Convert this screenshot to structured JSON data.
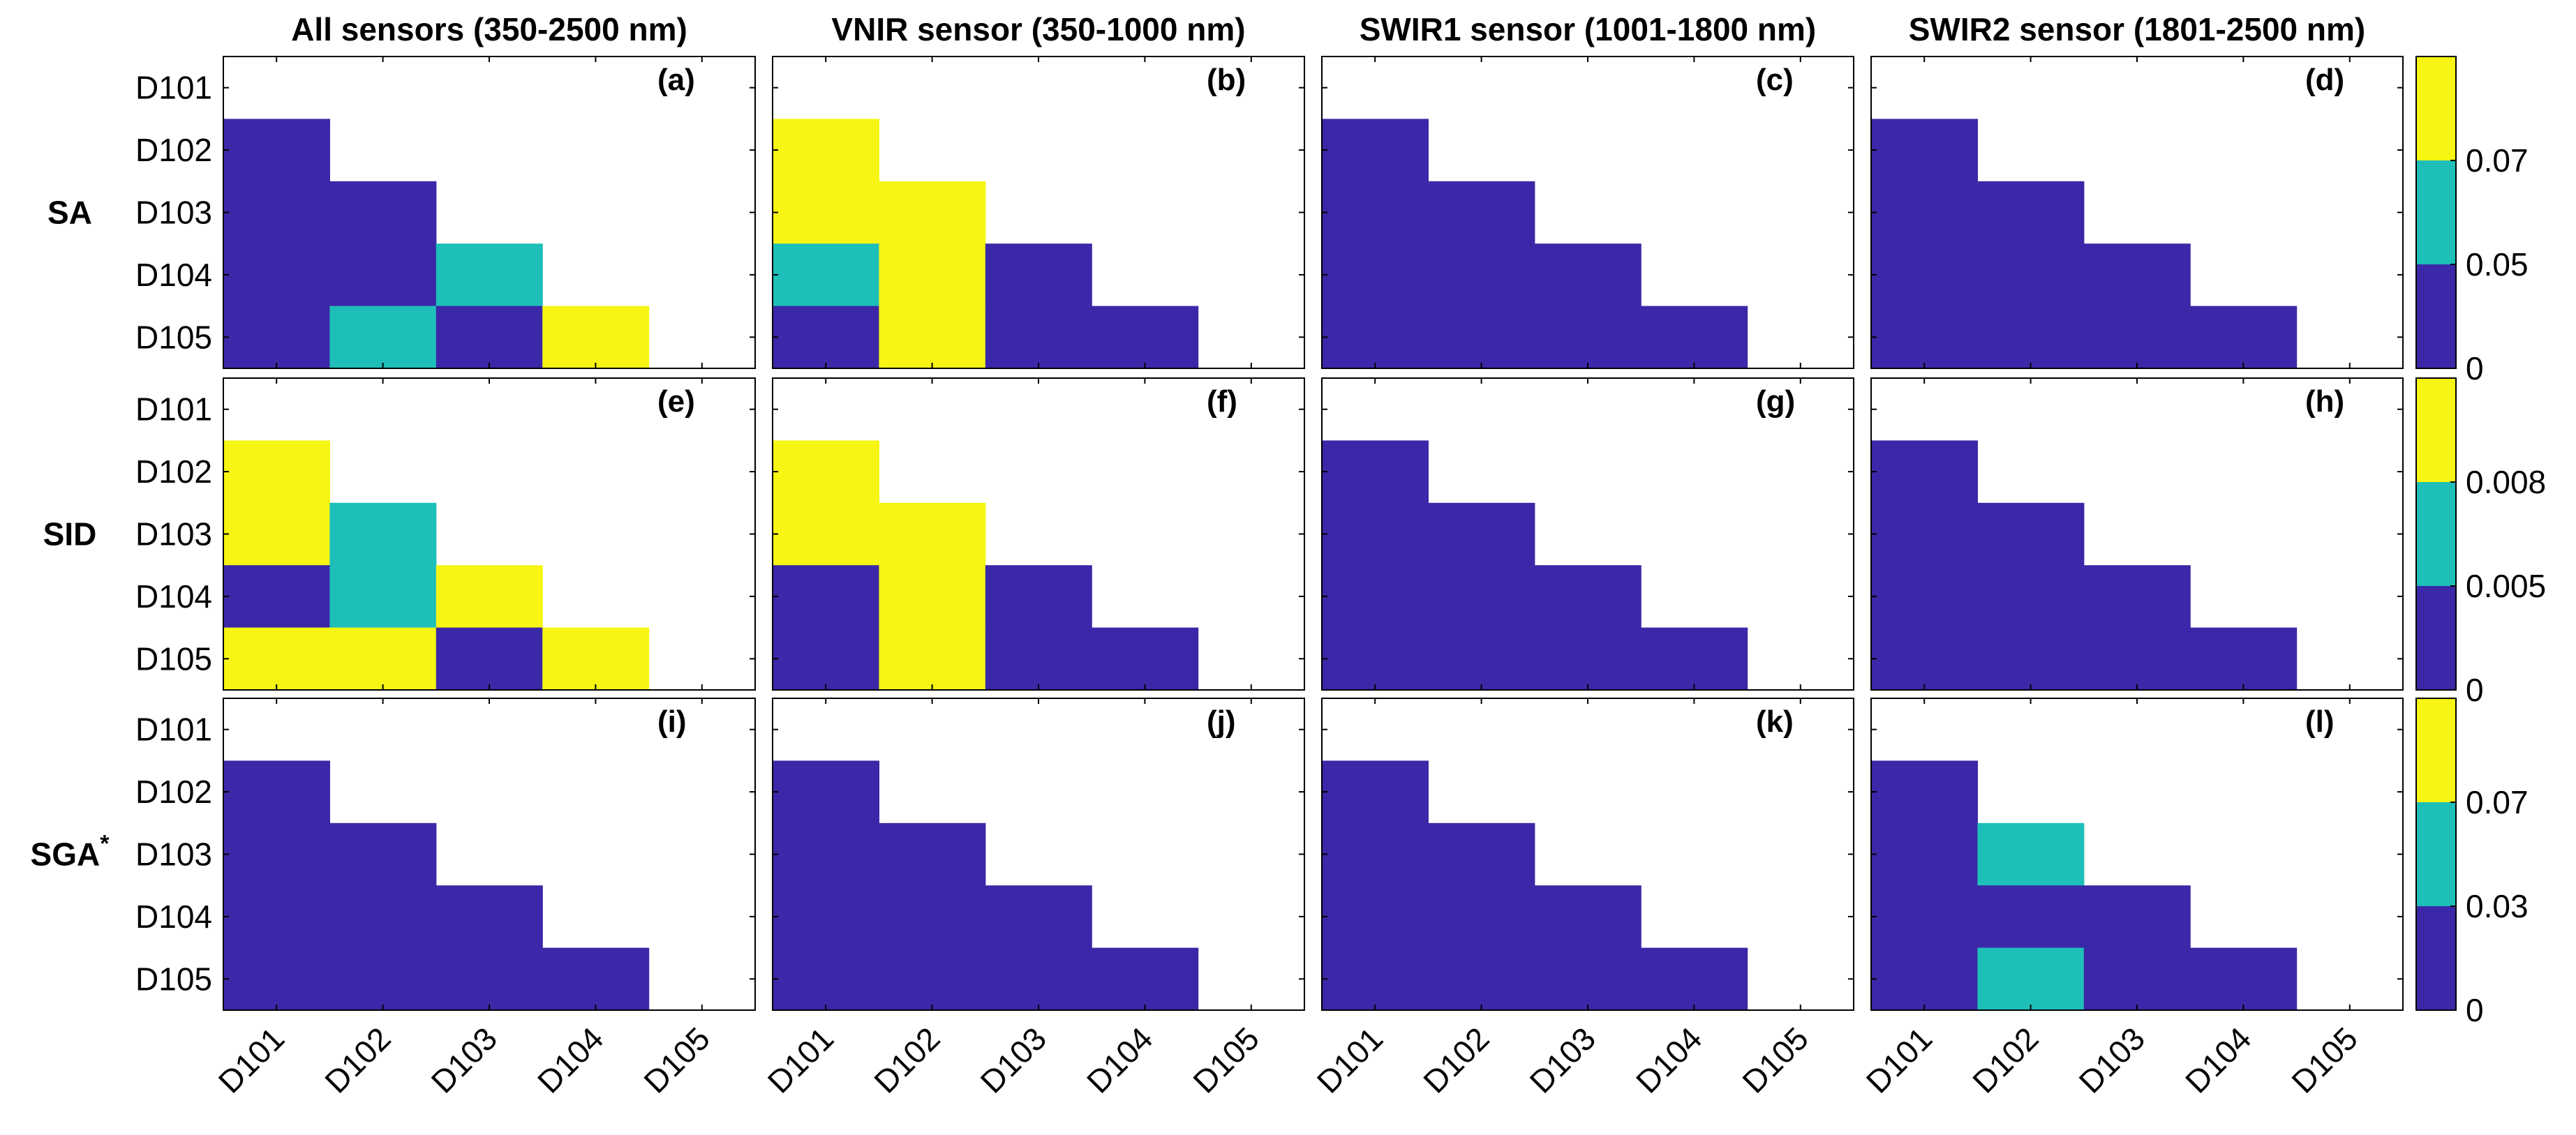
{
  "colors": {
    "low": "#3b28a8",
    "mid": "#1ebfb9",
    "high": "#f6f513",
    "none": "#ffffff",
    "axis": "#000000"
  },
  "figure": {
    "column_titles": [
      "All sensors (350-2500 nm)",
      "VNIR sensor (350-1000 nm)",
      "SWIR1 sensor (1001-1800 nm)",
      "SWIR2 sensor (1801-2500 nm)"
    ],
    "row_labels": [
      "SA",
      "SID",
      "SGA"
    ],
    "row_label_superscripts": [
      "",
      "",
      "*"
    ],
    "colorbars": [
      {
        "row": "SA",
        "ticks": [
          "0",
          "0.05",
          "0.07"
        ]
      },
      {
        "row": "SID",
        "ticks": [
          "0",
          "0.005",
          "0.008"
        ]
      },
      {
        "row": "SGA",
        "ticks": [
          "0",
          "0.03",
          "0.07"
        ]
      }
    ]
  },
  "chart_data": {
    "type": "heatmap",
    "rows": [
      "D101",
      "D102",
      "D103",
      "D104",
      "D105"
    ],
    "columns": [
      "D101",
      "D102",
      "D103",
      "D104",
      "D105"
    ],
    "value_legend": {
      "0": "lowest class (below first threshold)",
      "1": "middle class",
      "2": "highest class",
      "null": "not compared"
    },
    "panels": [
      {
        "label": "(a)",
        "metric": "SA",
        "sensor": "All sensors (350-2500 nm)",
        "grid": [
          [
            null,
            null,
            null,
            null,
            null
          ],
          [
            0,
            null,
            null,
            null,
            null
          ],
          [
            0,
            0,
            null,
            null,
            null
          ],
          [
            0,
            0,
            1,
            null,
            null
          ],
          [
            0,
            1,
            0,
            2,
            null
          ]
        ]
      },
      {
        "label": "(b)",
        "metric": "SA",
        "sensor": "VNIR sensor (350-1000 nm)",
        "grid": [
          [
            null,
            null,
            null,
            null,
            null
          ],
          [
            2,
            null,
            null,
            null,
            null
          ],
          [
            2,
            2,
            null,
            null,
            null
          ],
          [
            1,
            2,
            0,
            null,
            null
          ],
          [
            0,
            2,
            0,
            0,
            null
          ]
        ]
      },
      {
        "label": "(c)",
        "metric": "SA",
        "sensor": "SWIR1 sensor (1001-1800 nm)",
        "grid": [
          [
            null,
            null,
            null,
            null,
            null
          ],
          [
            0,
            null,
            null,
            null,
            null
          ],
          [
            0,
            0,
            null,
            null,
            null
          ],
          [
            0,
            0,
            0,
            null,
            null
          ],
          [
            0,
            0,
            0,
            0,
            null
          ]
        ]
      },
      {
        "label": "(d)",
        "metric": "SA",
        "sensor": "SWIR2 sensor (1801-2500 nm)",
        "grid": [
          [
            null,
            null,
            null,
            null,
            null
          ],
          [
            0,
            null,
            null,
            null,
            null
          ],
          [
            0,
            0,
            null,
            null,
            null
          ],
          [
            0,
            0,
            0,
            null,
            null
          ],
          [
            0,
            0,
            0,
            0,
            null
          ]
        ]
      },
      {
        "label": "(e)",
        "metric": "SID",
        "sensor": "All sensors (350-2500 nm)",
        "grid": [
          [
            null,
            null,
            null,
            null,
            null
          ],
          [
            2,
            null,
            null,
            null,
            null
          ],
          [
            2,
            1,
            null,
            null,
            null
          ],
          [
            0,
            1,
            2,
            null,
            null
          ],
          [
            2,
            2,
            0,
            2,
            null
          ]
        ]
      },
      {
        "label": "(f)",
        "metric": "SID",
        "sensor": "VNIR sensor (350-1000 nm)",
        "grid": [
          [
            null,
            null,
            null,
            null,
            null
          ],
          [
            2,
            null,
            null,
            null,
            null
          ],
          [
            2,
            2,
            null,
            null,
            null
          ],
          [
            0,
            2,
            0,
            null,
            null
          ],
          [
            0,
            2,
            0,
            0,
            null
          ]
        ]
      },
      {
        "label": "(g)",
        "metric": "SID",
        "sensor": "SWIR1 sensor (1001-1800 nm)",
        "grid": [
          [
            null,
            null,
            null,
            null,
            null
          ],
          [
            0,
            null,
            null,
            null,
            null
          ],
          [
            0,
            0,
            null,
            null,
            null
          ],
          [
            0,
            0,
            0,
            null,
            null
          ],
          [
            0,
            0,
            0,
            0,
            null
          ]
        ]
      },
      {
        "label": "(h)",
        "metric": "SID",
        "sensor": "SWIR2 sensor (1801-2500 nm)",
        "grid": [
          [
            null,
            null,
            null,
            null,
            null
          ],
          [
            0,
            null,
            null,
            null,
            null
          ],
          [
            0,
            0,
            null,
            null,
            null
          ],
          [
            0,
            0,
            0,
            null,
            null
          ],
          [
            0,
            0,
            0,
            0,
            null
          ]
        ]
      },
      {
        "label": "(i)",
        "metric": "SGA",
        "sensor": "All sensors (350-2500 nm)",
        "grid": [
          [
            null,
            null,
            null,
            null,
            null
          ],
          [
            0,
            null,
            null,
            null,
            null
          ],
          [
            0,
            0,
            null,
            null,
            null
          ],
          [
            0,
            0,
            0,
            null,
            null
          ],
          [
            0,
            0,
            0,
            0,
            null
          ]
        ]
      },
      {
        "label": "(j)",
        "metric": "SGA",
        "sensor": "VNIR sensor (350-1000 nm)",
        "grid": [
          [
            null,
            null,
            null,
            null,
            null
          ],
          [
            0,
            null,
            null,
            null,
            null
          ],
          [
            0,
            0,
            null,
            null,
            null
          ],
          [
            0,
            0,
            0,
            null,
            null
          ],
          [
            0,
            0,
            0,
            0,
            null
          ]
        ]
      },
      {
        "label": "(k)",
        "metric": "SGA",
        "sensor": "SWIR1 sensor (1001-1800 nm)",
        "grid": [
          [
            null,
            null,
            null,
            null,
            null
          ],
          [
            0,
            null,
            null,
            null,
            null
          ],
          [
            0,
            0,
            null,
            null,
            null
          ],
          [
            0,
            0,
            0,
            null,
            null
          ],
          [
            0,
            0,
            0,
            0,
            null
          ]
        ]
      },
      {
        "label": "(l)",
        "metric": "SGA",
        "sensor": "SWIR2 sensor (1801-2500 nm)",
        "grid": [
          [
            null,
            null,
            null,
            null,
            null
          ],
          [
            0,
            null,
            null,
            null,
            null
          ],
          [
            0,
            1,
            null,
            null,
            null
          ],
          [
            0,
            0,
            0,
            null,
            null
          ],
          [
            0,
            1,
            0,
            0,
            null
          ]
        ]
      }
    ]
  }
}
